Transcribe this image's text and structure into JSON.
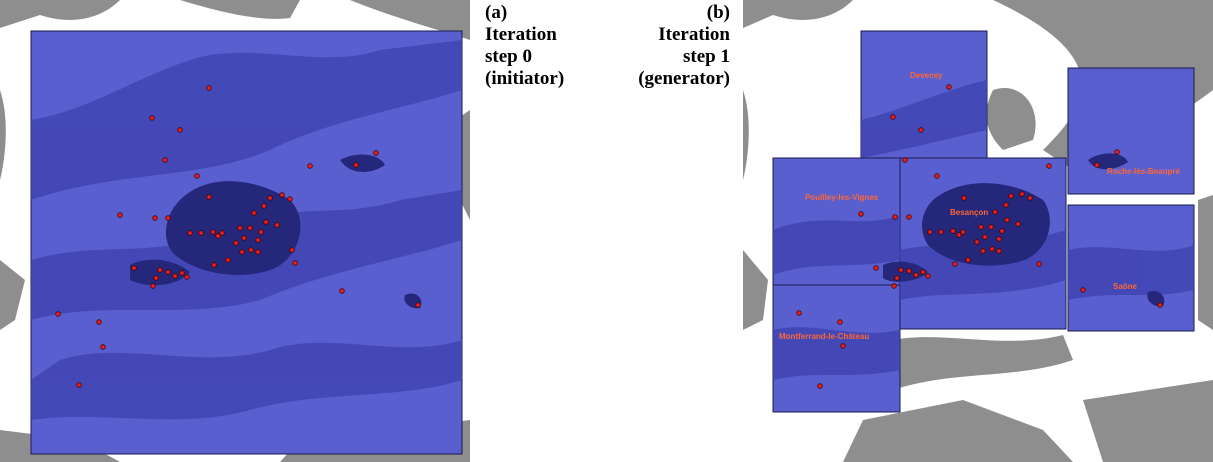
{
  "panel_a": {
    "letter": "(a)",
    "line1": "Iteration",
    "line2": "step 0",
    "line3": "(initiator)"
  },
  "panel_b": {
    "letter": "(b)",
    "line1": "Iteration",
    "line2": "step 1",
    "line3": "(generator)"
  },
  "place_labels": {
    "devecey": "Devecey",
    "pouilley": "Pouilley-les-Vignes",
    "besancon": "Besançon",
    "roche": "Roche-lès-Beaupré",
    "saone": "Saône",
    "montferrand": "Montferrand-le-Château"
  },
  "colors": {
    "overlay_blue": "#3a3dc4",
    "urban_dark_blue": "#24277a",
    "terrain_gray": "#8e8e8e",
    "point_red": "#e52020",
    "label_orange": "#ff6633"
  }
}
